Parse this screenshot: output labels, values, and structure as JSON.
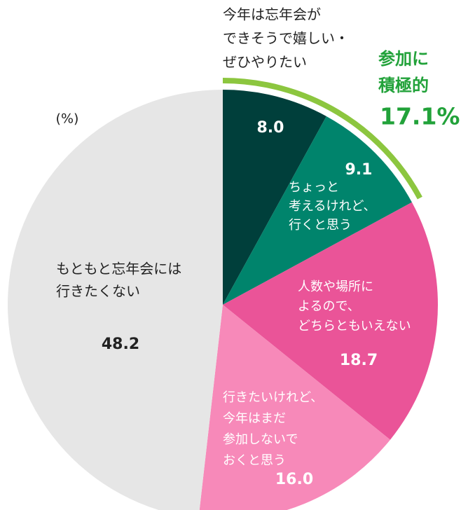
{
  "chart_data": {
    "type": "pie",
    "unit_label": "(%)",
    "categories": [
      [
        "今年は忘年会が",
        "できそうで嬉しい・",
        "ぜひやりたい"
      ],
      [
        "ちょっと",
        "考えるけれど、",
        "行くと思う"
      ],
      [
        "人数や場所に",
        "よるので、",
        "どちらともいえない"
      ],
      [
        "行きたいけれど、",
        "今年はまだ",
        "参加しないで",
        "おくと思う"
      ],
      [
        "もともと忘年会には",
        "行きたくない"
      ]
    ],
    "values": [
      8.0,
      9.1,
      18.7,
      16.0,
      48.2
    ],
    "value_labels": [
      "8.0",
      "9.1",
      "18.7",
      "16.0",
      "48.2"
    ],
    "colors": [
      "#003f3b",
      "#00846c",
      "#ea5498",
      "#f789b9",
      "#e6e6e6"
    ],
    "annotation": {
      "lines": [
        "参加に",
        "積極的"
      ],
      "value": 17.1,
      "value_label": "17.1%",
      "color": "#8cc63f",
      "text_color": "#22a23a"
    }
  }
}
